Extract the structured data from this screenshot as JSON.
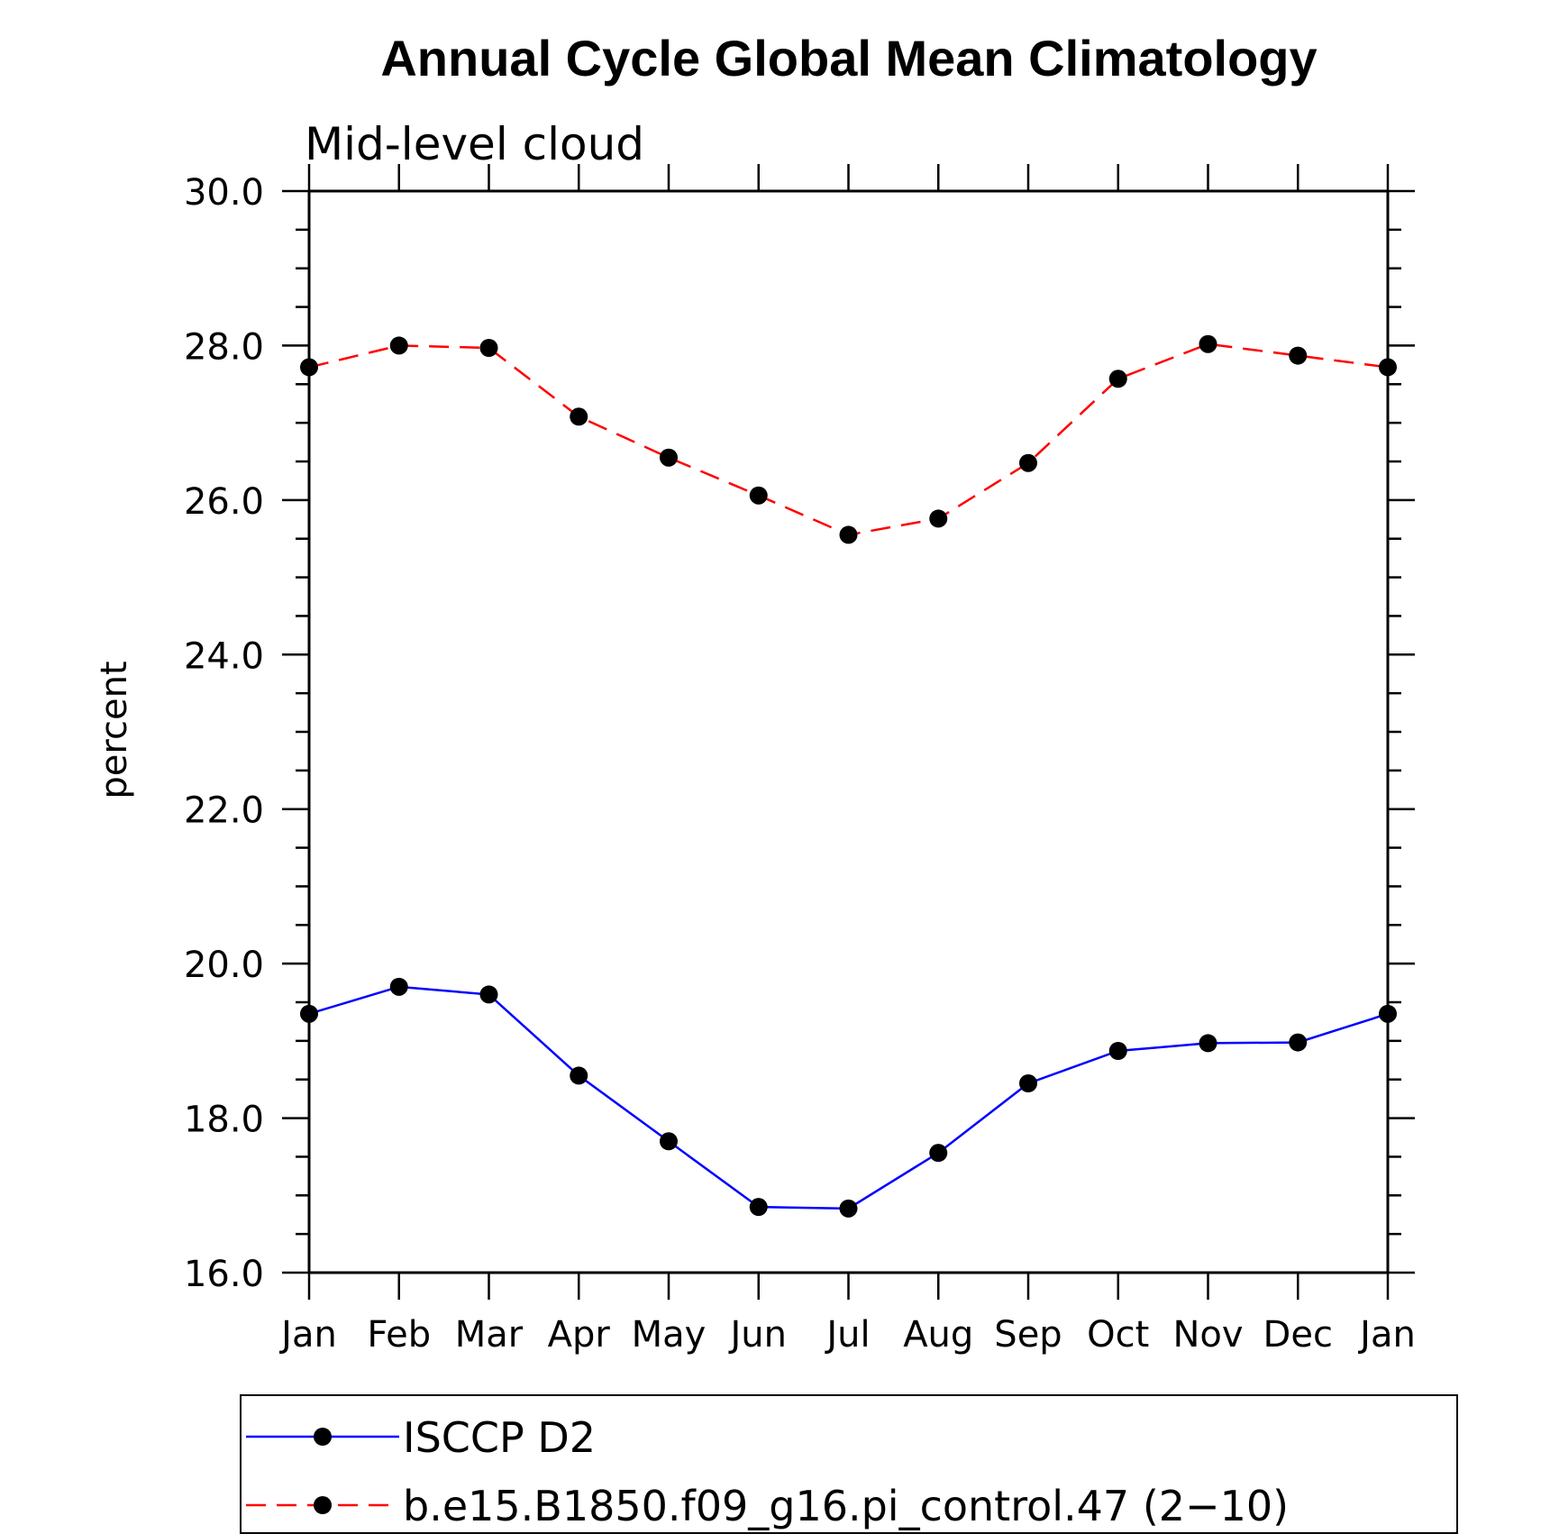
{
  "chart_data": {
    "type": "line",
    "title": "Annual Cycle Global Mean Climatology",
    "subtitle": "Mid-level cloud",
    "ylabel": "percent",
    "xlabel": "",
    "ylim": [
      16.0,
      30.0
    ],
    "yticks": [
      "16.0",
      "18.0",
      "20.0",
      "22.0",
      "24.0",
      "26.0",
      "28.0",
      "30.0"
    ],
    "categories": [
      "Jan",
      "Feb",
      "Mar",
      "Apr",
      "May",
      "Jun",
      "Jul",
      "Aug",
      "Sep",
      "Oct",
      "Nov",
      "Dec",
      "Jan"
    ],
    "series": [
      {
        "name": "ISCCP D2",
        "color": "#0000ff",
        "dash": "solid",
        "values": [
          19.35,
          19.7,
          19.6,
          18.55,
          17.7,
          16.85,
          16.83,
          17.55,
          18.45,
          18.87,
          18.97,
          18.98,
          19.35
        ]
      },
      {
        "name": "b.e15.B1850.f09_g16.pi_control.47 (2−10)",
        "color": "#ff0000",
        "dash": "dashed",
        "values": [
          27.72,
          28.0,
          27.97,
          27.08,
          26.55,
          26.06,
          25.55,
          25.76,
          26.48,
          27.57,
          28.02,
          27.87,
          27.72
        ]
      }
    ],
    "grid": false,
    "legend_position": "bottom"
  }
}
